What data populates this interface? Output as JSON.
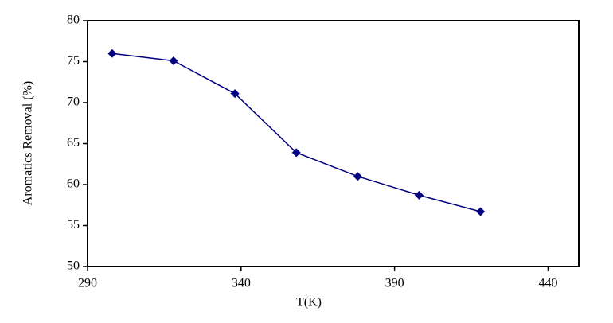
{
  "chart_data": {
    "type": "line",
    "x_label": "T(K)",
    "y_label": "Aromatics Removal (%)",
    "x": [
      298,
      318,
      338,
      358,
      378,
      398,
      418
    ],
    "series": [
      {
        "color": "#000080",
        "values": [
          76.0,
          75.1,
          71.1,
          63.9,
          61.0,
          58.7,
          56.7
        ]
      }
    ],
    "xlim": [
      290,
      450
    ],
    "xticks": [
      290,
      340,
      390,
      440
    ],
    "ylim": [
      50,
      80
    ],
    "yticks": [
      50,
      55,
      60,
      65,
      70,
      75,
      80
    ]
  }
}
